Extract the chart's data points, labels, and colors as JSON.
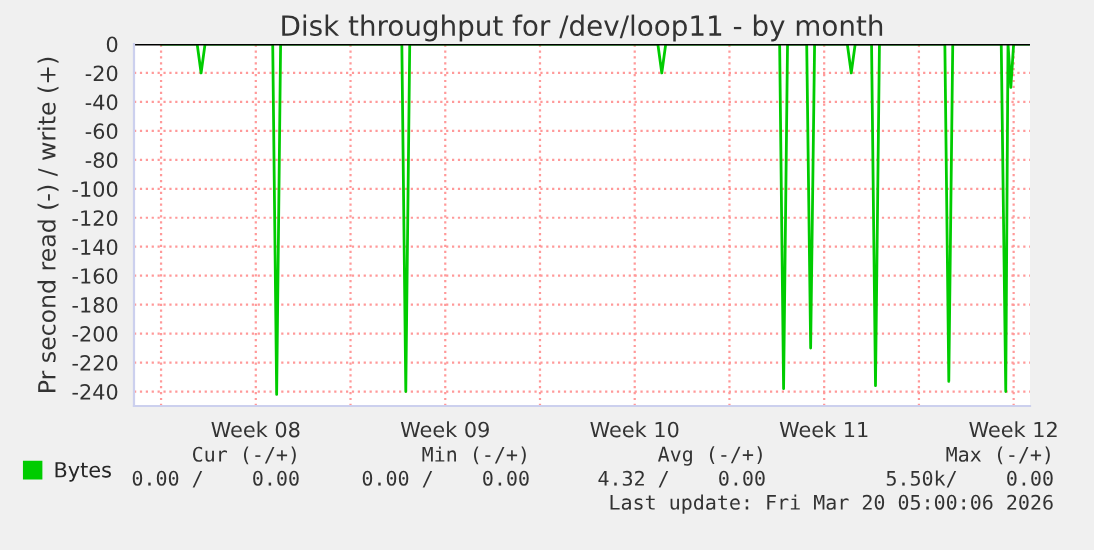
{
  "chart_data": {
    "type": "line",
    "title": "Disk throughput for /dev/loop11 - by month",
    "ylabel": "Pr second read (-) / write (+)",
    "series": [
      {
        "name": "Bytes",
        "color": "#00cc00",
        "x": [
          "2026-02-16T00:00",
          "2026-02-17T08:00",
          "2026-02-17T11:30",
          "2026-02-17T15:00",
          "2026-02-20T03:00",
          "2026-02-20T06:30",
          "2026-02-20T10:00",
          "2026-02-24T21:30",
          "2026-02-25T01:00",
          "2026-02-25T04:30",
          "2026-03-06T08:30",
          "2026-03-06T12:00",
          "2026-03-06T15:30",
          "2026-03-10T20:30",
          "2026-03-11T00:00",
          "2026-03-11T03:30",
          "2026-03-11T20:30",
          "2026-03-12T00:00",
          "2026-03-12T03:30",
          "2026-03-13T08:30",
          "2026-03-13T12:00",
          "2026-03-13T15:30",
          "2026-03-14T06:00",
          "2026-03-14T09:30",
          "2026-03-14T13:00",
          "2026-03-16T23:00",
          "2026-03-17T02:30",
          "2026-03-17T06:00",
          "2026-03-19T01:00",
          "2026-03-19T05:00",
          "2026-03-19T07:00",
          "2026-03-19T09:30",
          "2026-03-19T12:00",
          "2026-03-20T02:00"
        ],
        "values": [
          0,
          0,
          -20,
          0,
          0,
          -242,
          0,
          0,
          -240,
          0,
          0,
          -20,
          0,
          0,
          -238,
          0,
          0,
          -210,
          0,
          0,
          -20,
          0,
          0,
          -236,
          0,
          0,
          -233,
          0,
          0,
          -240,
          0,
          -30,
          0,
          0
        ]
      }
    ],
    "xlim": [
      "2026-02-15T00:00",
      "2026-03-20T02:30"
    ],
    "ylim": [
      -250,
      0
    ],
    "xticks": [
      {
        "value": "2026-02-16",
        "label": null
      },
      {
        "value": "2026-02-19T12:00",
        "label": "Week 08"
      },
      {
        "value": "2026-02-23",
        "label": null
      },
      {
        "value": "2026-02-26T12:00",
        "label": "Week 09"
      },
      {
        "value": "2026-03-02",
        "label": null
      },
      {
        "value": "2026-03-05T12:00",
        "label": "Week 10"
      },
      {
        "value": "2026-03-09",
        "label": null
      },
      {
        "value": "2026-03-12T12:00",
        "label": "Week 11"
      },
      {
        "value": "2026-03-16",
        "label": null
      },
      {
        "value": "2026-03-19T12:00",
        "label": "Week 12"
      }
    ],
    "yticks": [
      0,
      -20,
      -40,
      -60,
      -80,
      -100,
      -120,
      -140,
      -160,
      -180,
      -200,
      -220,
      -240
    ],
    "grid": true,
    "legend": "bottom left",
    "annotations": [
      "Cur (-/+)",
      "Min (-/+)",
      "Avg (-/+)",
      "Max (-/+)",
      "0.00 /    0.00",
      "0.00 /    0.00",
      "4.32 /    0.00",
      "5.50k/    0.00",
      "Last update: Fri Mar 20 05:00:06 2026"
    ]
  }
}
